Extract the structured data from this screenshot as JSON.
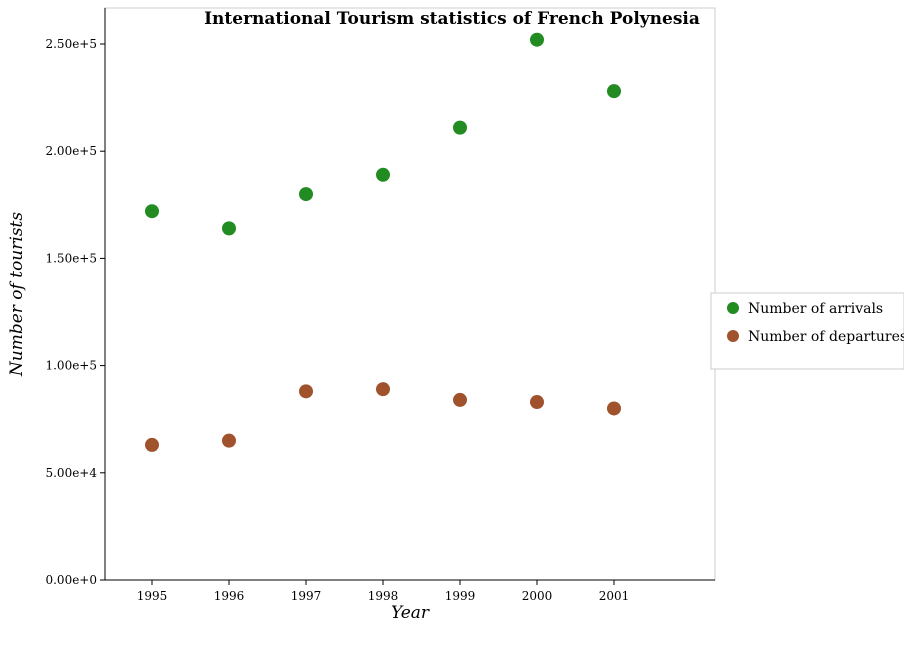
{
  "chart_data": {
    "type": "scatter",
    "title": "International Tourism statistics of French Polynesia",
    "xlabel": "Year",
    "ylabel": "Number of tourists",
    "categories": [
      "1995",
      "1996",
      "1997",
      "1998",
      "1999",
      "2000",
      "2001"
    ],
    "series": [
      {
        "name": "Number of arrivals",
        "color": "#228b22",
        "values": [
          172000,
          164000,
          180000,
          189000,
          211000,
          252000,
          228000
        ]
      },
      {
        "name": "Number of departures",
        "color": "#a0522d",
        "values": [
          63000,
          65000,
          88000,
          89000,
          84000,
          83000,
          80000
        ]
      }
    ],
    "ylim": [
      0,
      260000
    ],
    "yticks": [
      0,
      50000,
      100000,
      150000,
      200000,
      250000
    ],
    "ytick_labels": [
      "0.00e+0",
      "5.00e+4",
      "1.00e+5",
      "1.50e+5",
      "2.00e+5",
      "2.50e+5"
    ],
    "grid": false,
    "legend_position": "right"
  }
}
